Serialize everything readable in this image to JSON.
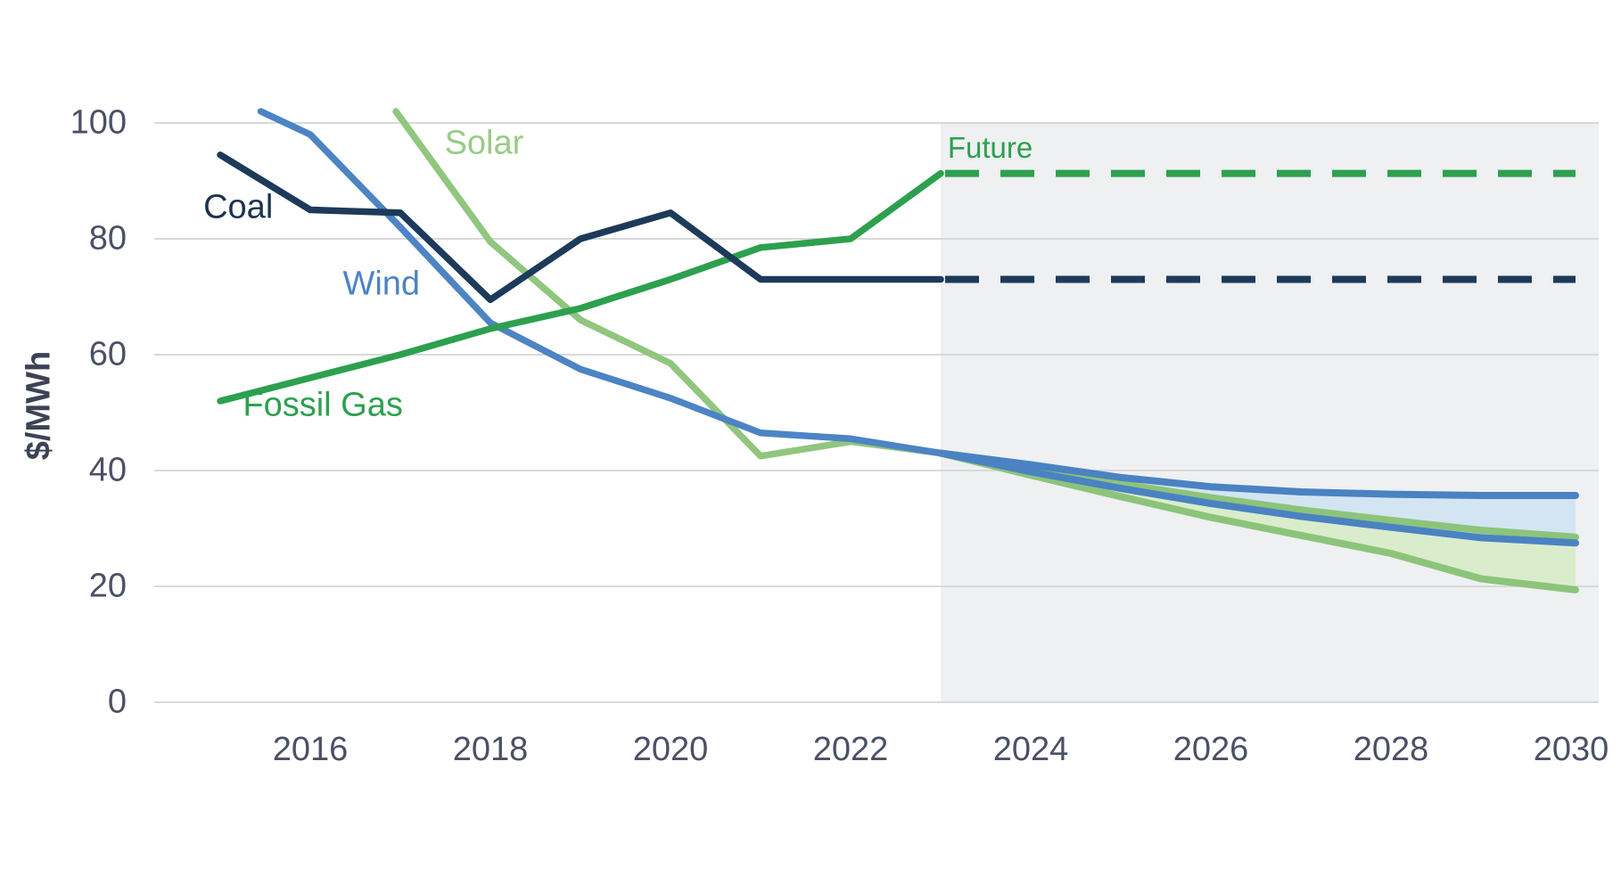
{
  "chart_data": {
    "type": "line",
    "title": "",
    "xlabel": "",
    "ylabel": "$/MWh",
    "units": "$/MWh",
    "x_ticks": [
      2016,
      2018,
      2020,
      2022,
      2024,
      2026,
      2028,
      2030
    ],
    "x_tick_labels": [
      "2016",
      "2018",
      "2020",
      "2022",
      "2024",
      "2026",
      "2028",
      "2030"
    ],
    "y_ticks": [
      0,
      20,
      40,
      60,
      80,
      100
    ],
    "y_tick_labels": [
      "0",
      "20",
      "40",
      "60",
      "80",
      "100"
    ],
    "xlim": [
      2014.8,
      2030.3
    ],
    "ylim": [
      0,
      105
    ],
    "grid": "horizontal",
    "gridline_color": "#d8d9db",
    "background_color": "#ffffff",
    "future_region": {
      "label": "Future",
      "start_year": 2023,
      "fill": "#eef0f1",
      "label_color": "#2da04f"
    },
    "series": [
      {
        "name": "Solar",
        "style": "solid",
        "color": "#90c67e",
        "points": [
          [
            2016.95,
            102
          ],
          [
            2018,
            79.5
          ],
          [
            2019,
            66
          ],
          [
            2020,
            58.5
          ],
          [
            2021,
            42.5
          ],
          [
            2022,
            45
          ],
          [
            2023,
            43
          ]
        ]
      },
      {
        "name": "Wind",
        "style": "solid",
        "color": "#4c84c4",
        "points": [
          [
            2015.45,
            102
          ],
          [
            2016,
            98
          ],
          [
            2017,
            82
          ],
          [
            2018,
            65.5
          ],
          [
            2019,
            57.5
          ],
          [
            2020,
            52.5
          ],
          [
            2021,
            46.5
          ],
          [
            2022,
            45.5
          ],
          [
            2023,
            43
          ]
        ]
      },
      {
        "name": "Fossil Gas",
        "style": "solid",
        "color": "#2da04f",
        "points": [
          [
            2015,
            52
          ],
          [
            2016,
            56
          ],
          [
            2017,
            60
          ],
          [
            2018,
            64.5
          ],
          [
            2019,
            68
          ],
          [
            2020,
            73
          ],
          [
            2021,
            78.5
          ],
          [
            2022,
            80
          ],
          [
            2023,
            91.3
          ]
        ]
      },
      {
        "name": "Coal",
        "style": "solid",
        "color": "#1d3a5a",
        "points": [
          [
            2015,
            94.5
          ],
          [
            2016,
            85
          ],
          [
            2017,
            84.5
          ],
          [
            2018,
            69.5
          ],
          [
            2019,
            80
          ],
          [
            2020,
            84.5
          ],
          [
            2021,
            73
          ],
          [
            2022,
            73
          ],
          [
            2023,
            73
          ]
        ]
      },
      {
        "name": "Fossil Gas future projection",
        "style": "dashed",
        "color": "#2da04f",
        "points": [
          [
            2023.05,
            91.3
          ],
          [
            2030.05,
            91.3
          ]
        ]
      },
      {
        "name": "Coal future projection",
        "style": "dashed",
        "color": "#1d3a5a",
        "points": [
          [
            2023.05,
            73
          ],
          [
            2030.05,
            73
          ]
        ]
      }
    ],
    "bands": [
      {
        "name": "Solar future projection range",
        "line_color": "#8cc47a",
        "fill": "#d9edcc",
        "x": [
          2023,
          2024,
          2025,
          2026,
          2027,
          2028,
          2029,
          2030.05
        ],
        "upper": [
          43,
          40.3,
          37.7,
          35.3,
          33.2,
          31.4,
          29.7,
          28.5
        ],
        "lower": [
          43,
          39.2,
          35.5,
          31.9,
          28.8,
          25.7,
          21.3,
          19.4
        ]
      },
      {
        "name": "Wind future projection range",
        "line_color": "#4a82c2",
        "fill": "#d3e5f3",
        "x": [
          2023,
          2024,
          2025,
          2026,
          2027,
          2028,
          2029,
          2030.05
        ],
        "upper": [
          43,
          41,
          38.8,
          37.2,
          36.3,
          35.9,
          35.7,
          35.7
        ],
        "lower": [
          43,
          39.8,
          36.9,
          34.3,
          32.1,
          30.2,
          28.4,
          27.5
        ]
      }
    ],
    "labels": {
      "coal": {
        "text": "Coal",
        "color": "#1c3350",
        "pos": [
          2015.2,
          85.4
        ]
      },
      "wind": {
        "text": "Wind",
        "color": "#4c84c4",
        "pos": [
          2016.79,
          72.2
        ]
      },
      "solar": {
        "text": "Solar",
        "color": "#98cb86",
        "pos": [
          2017.93,
          96.5
        ]
      },
      "fossil_gas": {
        "text": "Fossil Gas",
        "color": "#2da04f",
        "pos": [
          2016.14,
          51.2
        ]
      },
      "future": {
        "text": "Future",
        "color": "#2da04f",
        "pos": [
          2023.55,
          95.7
        ]
      }
    }
  }
}
